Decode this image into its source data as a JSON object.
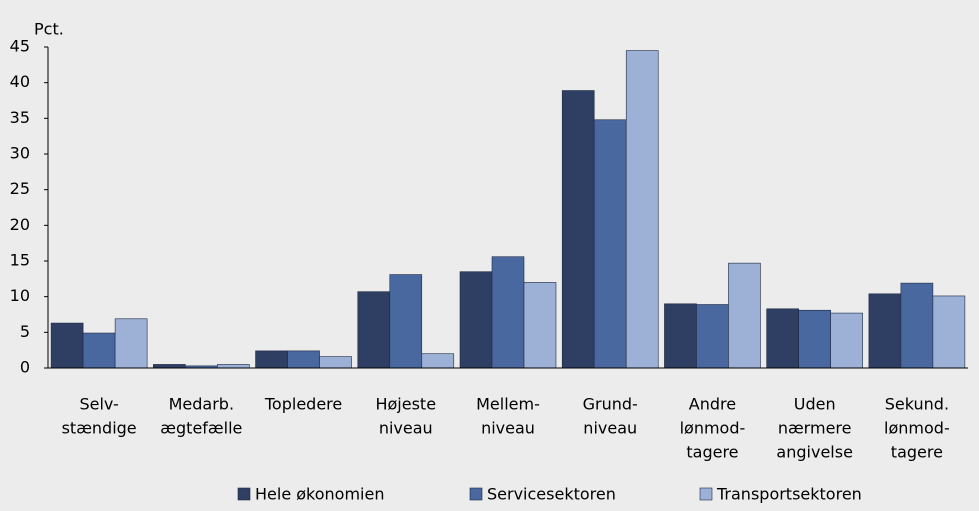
{
  "chart_data": {
    "type": "bar",
    "y_label": "Pct.",
    "categories": [
      [
        "Selv-",
        "stændige"
      ],
      [
        "Medarb.",
        "ægtefælle"
      ],
      [
        "Topledere"
      ],
      [
        "Højeste",
        "niveau"
      ],
      [
        "Mellem-",
        "niveau"
      ],
      [
        "Grund-",
        "niveau"
      ],
      [
        "Andre",
        "lønmod-",
        "tagere"
      ],
      [
        "Uden",
        "nærmere",
        "angivelse"
      ],
      [
        "Sekund.",
        "lønmod-",
        "tagere"
      ]
    ],
    "series": [
      {
        "name": "Hele økonomien",
        "color": "#2e3f63",
        "values": [
          6.3,
          0.5,
          2.4,
          10.7,
          13.5,
          38.9,
          9.0,
          8.3,
          10.4
        ]
      },
      {
        "name": "Servicesektoren",
        "color": "#4a68a0",
        "values": [
          4.9,
          0.3,
          2.4,
          13.1,
          15.6,
          34.8,
          8.9,
          8.1,
          11.9
        ]
      },
      {
        "name": "Transportsektoren",
        "color": "#9db0d5",
        "values": [
          6.9,
          0.5,
          1.6,
          2.0,
          12.0,
          44.5,
          14.7,
          7.7,
          10.1
        ]
      }
    ],
    "ylim": [
      0,
      45
    ],
    "yticks": [
      0,
      5,
      10,
      15,
      20,
      25,
      30,
      35,
      40,
      45
    ],
    "legend": "bottom"
  }
}
